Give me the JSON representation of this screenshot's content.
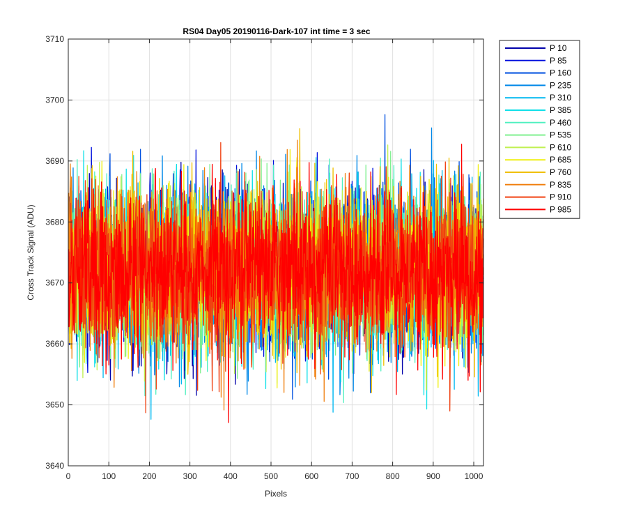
{
  "chart_data": {
    "type": "line",
    "title": "RS04 Day05 20190116-Dark-107 int time = 3 sec",
    "xlabel": "Pixels",
    "ylabel": "Cross Track Signal (ADU)",
    "xlim": [
      0,
      1024
    ],
    "ylim": [
      3640,
      3710
    ],
    "xticks": [
      0,
      100,
      200,
      300,
      400,
      500,
      600,
      700,
      800,
      900,
      1000
    ],
    "yticks": [
      3640,
      3650,
      3660,
      3670,
      3680,
      3690,
      3700,
      3710
    ],
    "grid": true,
    "legend_position": "outside-top-right",
    "n_points": 1024,
    "noise_mean": 3672,
    "noise_std": 6.5,
    "series": [
      {
        "name": "P 10",
        "color": "#0000aa"
      },
      {
        "name": "P 85",
        "color": "#0010dd"
      },
      {
        "name": "P 160",
        "color": "#0050e0"
      },
      {
        "name": "P 235",
        "color": "#0088e8"
      },
      {
        "name": "P 310",
        "color": "#00b8f0"
      },
      {
        "name": "P 385",
        "color": "#10e0e8"
      },
      {
        "name": "P 460",
        "color": "#50f0c0"
      },
      {
        "name": "P 535",
        "color": "#80f090"
      },
      {
        "name": "P 610",
        "color": "#c0f050"
      },
      {
        "name": "P 685",
        "color": "#f0f010"
      },
      {
        "name": "P 760",
        "color": "#f0c000"
      },
      {
        "name": "P 835",
        "color": "#f08010"
      },
      {
        "name": "P 910",
        "color": "#f04010"
      },
      {
        "name": "P 985",
        "color": "#ff0000"
      }
    ]
  }
}
